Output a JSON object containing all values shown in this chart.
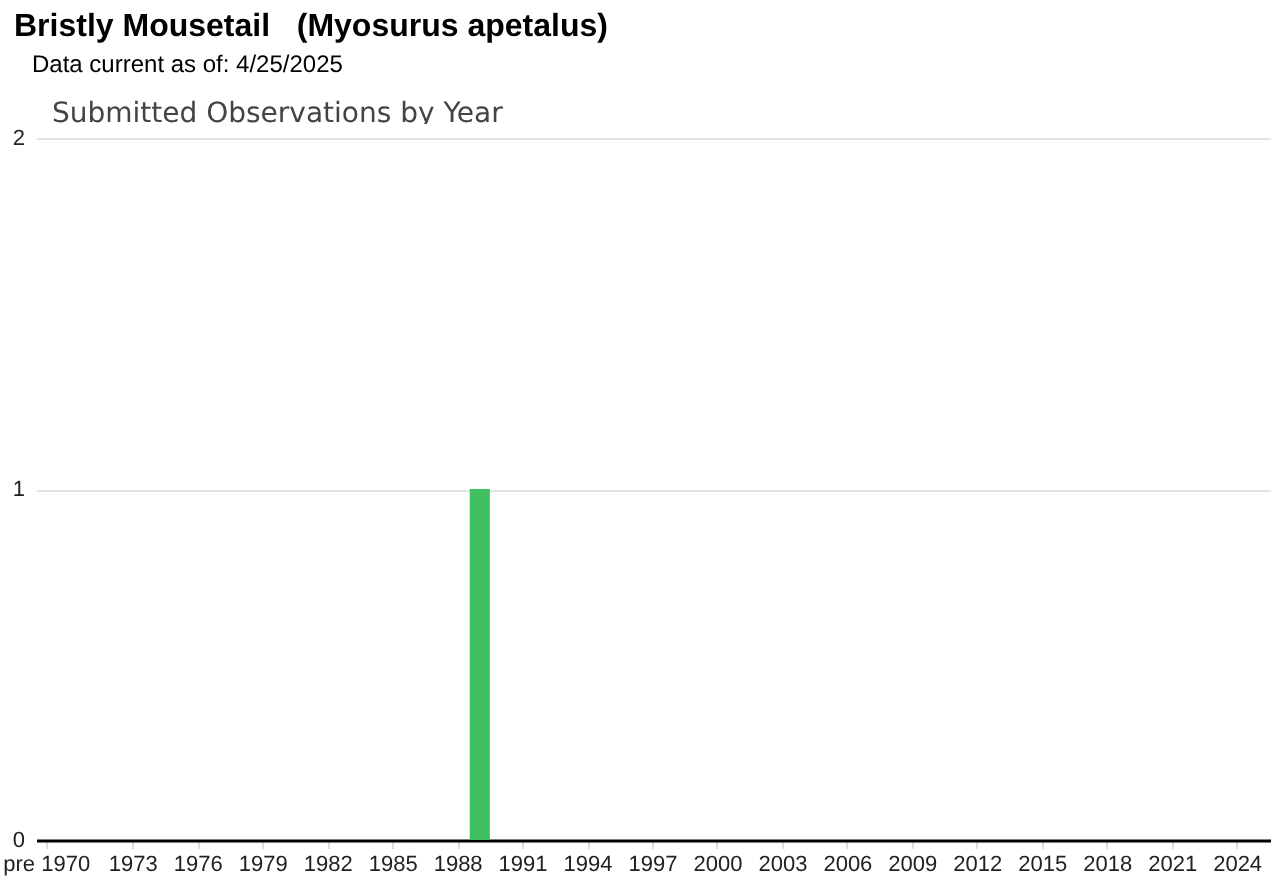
{
  "chart_data": {
    "type": "bar",
    "title": "Bristly Mousetail   (Myosurus apetalus)",
    "subtitle": "Data current as of: 4/25/2025",
    "annotations": [
      "Submitted Observations by Year"
    ],
    "categories": [
      "pre 1970",
      null,
      null,
      null,
      "1973",
      null,
      null,
      "1976",
      null,
      null,
      "1979",
      null,
      null,
      "1982",
      null,
      null,
      "1985",
      null,
      null,
      "1988",
      null,
      null,
      "1991",
      null,
      null,
      "1994",
      null,
      null,
      "1997",
      null,
      null,
      "2000",
      null,
      null,
      "2003",
      null,
      null,
      "2006",
      null,
      null,
      "2009",
      null,
      null,
      "2012",
      null,
      null,
      "2015",
      null,
      null,
      "2018",
      null,
      null,
      "2021",
      null,
      null,
      "2024",
      null
    ],
    "values": [
      0,
      0,
      0,
      0,
      0,
      0,
      0,
      0,
      0,
      0,
      0,
      0,
      0,
      0,
      0,
      0,
      0,
      0,
      0,
      0,
      1,
      0,
      0,
      0,
      0,
      0,
      0,
      0,
      0,
      0,
      0,
      0,
      0,
      0,
      0,
      0,
      0,
      0,
      0,
      0,
      0,
      0,
      0,
      0,
      0,
      0,
      0,
      0,
      0,
      0,
      0,
      0,
      0,
      0,
      0,
      0,
      0
    ],
    "color": "#3fbf5f",
    "ylim": [
      0,
      2
    ],
    "yticks": [
      0,
      1,
      2
    ],
    "grid": "y"
  }
}
